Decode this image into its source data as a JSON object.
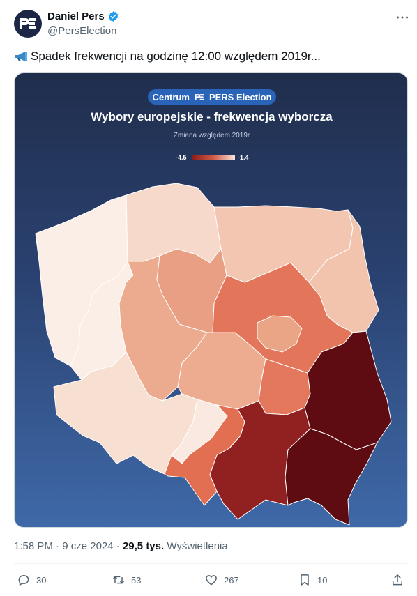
{
  "author": {
    "display_name": "Daniel Pers",
    "handle": "@PersElection",
    "avatar_icon": "pe-logo-icon",
    "verified_color": "#1d9bf0"
  },
  "tweet": {
    "text": "Spadek frekwencji na godzinę 12:00 względem 2019r...",
    "leading_icon": "megaphone-icon"
  },
  "media": {
    "brand_left": "Centrum",
    "brand_right": "PERS Election",
    "title": "Wybory europejskie  - frekwencja wyborcza",
    "subtitle": "Zmiana względem 2019r",
    "legend": {
      "min": "-4.5",
      "max": "-1.4",
      "color_min": "#8b1a1a",
      "color_max": "#fbe4da"
    },
    "regions": [
      {
        "name": "zachodniopomorskie",
        "color": "#fbeee6"
      },
      {
        "name": "pomorskie",
        "color": "#f7d9cb"
      },
      {
        "name": "warminsko-mazurskie",
        "color": "#f3c6b1"
      },
      {
        "name": "podlaskie",
        "color": "#f2c3ad"
      },
      {
        "name": "lubuskie",
        "color": "#fbeee6"
      },
      {
        "name": "wielkopolskie",
        "color": "#ecaa8e"
      },
      {
        "name": "kujawsko-pomorskie",
        "color": "#e89f83"
      },
      {
        "name": "mazowieckie",
        "color": "#e3765a"
      },
      {
        "name": "warszawa",
        "color": "#eaa486"
      },
      {
        "name": "lodzkie",
        "color": "#edac90"
      },
      {
        "name": "dolnoslaskie",
        "color": "#f7e0d1"
      },
      {
        "name": "opolskie",
        "color": "#f9e9e0"
      },
      {
        "name": "slaskie",
        "color": "#e36f52"
      },
      {
        "name": "swietokrzyskie",
        "color": "#e3785c"
      },
      {
        "name": "malopolskie",
        "color": "#912021"
      },
      {
        "name": "lubelskie",
        "color": "#5e0c12"
      },
      {
        "name": "podkarpackie",
        "color": "#5e0c12"
      }
    ]
  },
  "meta": {
    "time": "1:58 PM",
    "separator": "·",
    "date": "9 cze 2024",
    "views_count": "29,5 tys.",
    "views_label": "Wyświetlenia"
  },
  "actions": {
    "replies": "30",
    "reposts": "53",
    "likes": "267",
    "bookmarks": "10"
  }
}
